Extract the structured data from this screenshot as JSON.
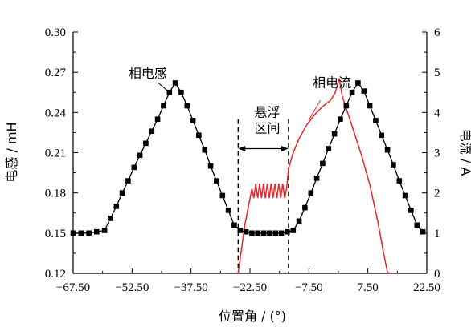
{
  "chart_data": {
    "type": "line",
    "title": "",
    "xlabel": "位置角 / (°)",
    "ylabel": "电感 / mH",
    "y2label": "电流 / A",
    "xlim": [
      -67.5,
      22.5
    ],
    "ylim": [
      0.12,
      0.3
    ],
    "y2lim": [
      0,
      6
    ],
    "x_ticks": [
      "−67.50",
      "−52.50",
      "−37.50",
      "−22.50",
      "−7.50",
      "7.50",
      "22.50"
    ],
    "y_ticks": [
      "0.12",
      "0.15",
      "0.18",
      "0.21",
      "0.24",
      "0.27",
      "0.30"
    ],
    "y2_ticks": [
      "0",
      "1",
      "2",
      "3",
      "4",
      "5",
      "6"
    ],
    "grid": false,
    "series": [
      {
        "name": "相电感",
        "axis": "left",
        "color": "#000000",
        "marker": "square",
        "x": [
          -67.5,
          -65.5,
          -63.5,
          -61.5,
          -59.5,
          -58,
          -56.5,
          -55,
          -53.5,
          -52,
          -50.5,
          -49,
          -47.5,
          -46,
          -44.5,
          -43,
          -41.5,
          -40,
          -38.5,
          -37,
          -35.5,
          -34,
          -32.5,
          -31,
          -29.5,
          -28,
          -26.5,
          -25,
          -23.5,
          -22,
          -20.5,
          -19,
          -17.5,
          -16,
          -14.5,
          -13,
          -11.5,
          -10,
          -8.5,
          -7,
          -5.5,
          -4,
          -2.5,
          -1,
          0.5,
          2,
          3.5,
          5,
          6.5,
          8,
          9.5,
          11,
          12.5,
          14,
          15.5,
          17,
          18.5,
          20,
          21.5
        ],
        "y": [
          0.15,
          0.15,
          0.15,
          0.151,
          0.152,
          0.161,
          0.17,
          0.18,
          0.189,
          0.199,
          0.208,
          0.217,
          0.226,
          0.235,
          0.245,
          0.255,
          0.262,
          0.255,
          0.245,
          0.234,
          0.223,
          0.212,
          0.2,
          0.189,
          0.178,
          0.167,
          0.156,
          0.152,
          0.151,
          0.15,
          0.15,
          0.15,
          0.15,
          0.15,
          0.15,
          0.151,
          0.152,
          0.159,
          0.169,
          0.18,
          0.191,
          0.202,
          0.213,
          0.224,
          0.235,
          0.245,
          0.255,
          0.262,
          0.256,
          0.245,
          0.234,
          0.223,
          0.212,
          0.201,
          0.189,
          0.178,
          0.167,
          0.156,
          0.151
        ]
      },
      {
        "name": "相电流",
        "axis": "right",
        "color": "#e8262a",
        "x": [
          -25.5,
          -23.8,
          -22.0,
          -19.5,
          -18.0,
          -14.5,
          -13.2,
          -12.7,
          -11.5,
          -10,
          -8,
          -6,
          -4,
          -2,
          -0.8,
          0.2,
          1,
          2,
          4,
          6,
          8,
          10,
          11.5,
          12.5,
          13.5
        ],
        "y": [
          0,
          1.2,
          2.1,
          2.0,
          2.0,
          2.0,
          2.1,
          2.6,
          3.0,
          3.35,
          3.7,
          3.95,
          4.15,
          4.3,
          4.5,
          4.85,
          4.4,
          4.1,
          3.5,
          2.9,
          2.2,
          1.3,
          0.5,
          0.02,
          0
        ]
      }
    ],
    "annotations": [
      {
        "text": "相电感",
        "x": -48.5,
        "y": 0.266
      },
      {
        "text": "相电流",
        "x": -1.6,
        "y": 0.259
      },
      {
        "text": "悬浮",
        "x": -18.1,
        "y": 0.237
      },
      {
        "text": "区间",
        "x": -18.1,
        "y": 0.225
      }
    ],
    "suspension_interval": [
      -25.5,
      -12.7
    ]
  }
}
